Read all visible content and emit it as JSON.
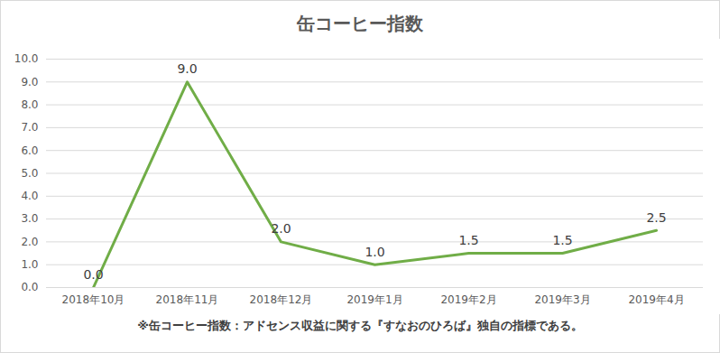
{
  "chart_data": {
    "type": "line",
    "title": "缶コーヒー指数",
    "caption": "※缶コーヒー指数：アドセンス収益に関する『すなおのひろば』独自の指標である。",
    "categories": [
      "2018年10月",
      "2018年11月",
      "2018年12月",
      "2019年1月",
      "2019年2月",
      "2019年3月",
      "2019年4月"
    ],
    "values": [
      0,
      9,
      2,
      1,
      1.5,
      1.5,
      2.5
    ],
    "value_labels": [
      "0.0",
      "9.0",
      "2.0",
      "1.0",
      "1.5",
      "1.5",
      "2.5"
    ],
    "color": "#70ad47",
    "ylim": [
      0,
      10
    ],
    "yticks": [
      {
        "value": 0,
        "label": "0.0"
      },
      {
        "value": 1,
        "label": "1.0"
      },
      {
        "value": 2,
        "label": "2.0"
      },
      {
        "value": 3,
        "label": "3.0"
      },
      {
        "value": 4,
        "label": "4.0"
      },
      {
        "value": 5,
        "label": "5.0"
      },
      {
        "value": 6,
        "label": "6.0"
      },
      {
        "value": 7,
        "label": "7.0"
      },
      {
        "value": 8,
        "label": "8.0"
      },
      {
        "value": 9,
        "label": "9.0"
      },
      {
        "value": 10,
        "label": "10.0"
      }
    ],
    "grid": true,
    "data_labels": true
  }
}
